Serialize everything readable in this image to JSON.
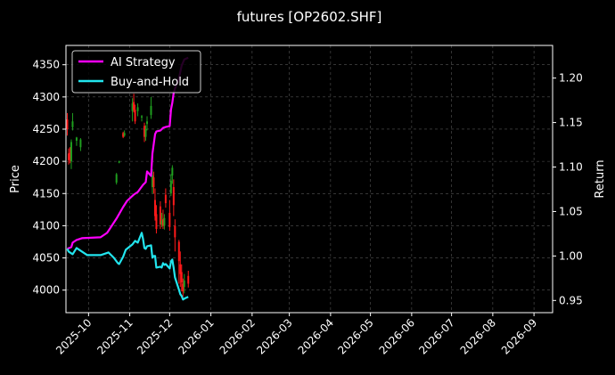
{
  "chart_data": {
    "type": "line",
    "title": "futures [OP2602.SHF]",
    "ylabel_left": "Price",
    "ylabel_right": "Return",
    "x_ticks": [
      "2025-10",
      "2025-11",
      "2025-12",
      "2026-01",
      "2026-02",
      "2026-03",
      "2026-04",
      "2026-05",
      "2026-06",
      "2026-07",
      "2026-08",
      "2026-09"
    ],
    "x_range": [
      "2025-09-14",
      "2026-09-15"
    ],
    "ylim_left": [
      3965,
      4380
    ],
    "yticks_left": [
      4000,
      4050,
      4100,
      4150,
      4200,
      4250,
      4300,
      4350
    ],
    "ylim_right": [
      0.9363,
      1.2367
    ],
    "yticks_right": [
      0.95,
      1.0,
      1.05,
      1.1,
      1.15,
      1.2
    ],
    "grid": true,
    "legend_position": "top-left",
    "colors": {
      "background": "#000000",
      "ai_strategy": "#ff00ff",
      "buy_and_hold": "#22e5ee",
      "candle_up": "#1f9e1f",
      "candle_down": "#ff1a1a",
      "grid": "#555555",
      "axis": "#ffffff"
    },
    "series": [
      {
        "name": "AI Strategy",
        "color": "#ff00ff",
        "points": [
          [
            "2025-09-15",
            1.008
          ],
          [
            "2025-09-18",
            1.01
          ],
          [
            "2025-09-19",
            1.015
          ],
          [
            "2025-09-22",
            1.018
          ],
          [
            "2025-09-26",
            1.02
          ],
          [
            "2025-10-10",
            1.021
          ],
          [
            "2025-10-15",
            1.026
          ],
          [
            "2025-10-22",
            1.042
          ],
          [
            "2025-10-27",
            1.055
          ],
          [
            "2025-10-30",
            1.062
          ],
          [
            "2025-11-04",
            1.069
          ],
          [
            "2025-11-07",
            1.072
          ],
          [
            "2025-11-11",
            1.08
          ],
          [
            "2025-11-13",
            1.083
          ],
          [
            "2025-11-14",
            1.095
          ],
          [
            "2025-11-17",
            1.09
          ],
          [
            "2025-11-18",
            1.115
          ],
          [
            "2025-11-20",
            1.137
          ],
          [
            "2025-11-21",
            1.14
          ],
          [
            "2025-11-24",
            1.141
          ],
          [
            "2025-11-26",
            1.144
          ],
          [
            "2025-11-28",
            1.145
          ],
          [
            "2025-12-01",
            1.146
          ],
          [
            "2025-12-02",
            1.165
          ],
          [
            "2025-12-03",
            1.172
          ],
          [
            "2025-12-04",
            1.183
          ],
          [
            "2025-12-05",
            1.188
          ],
          [
            "2025-12-08",
            1.2
          ],
          [
            "2025-12-10",
            1.214
          ],
          [
            "2025-12-12",
            1.221
          ],
          [
            "2025-12-15",
            1.223
          ]
        ]
      },
      {
        "name": "Buy-and-Hold",
        "color": "#22e5ee",
        "points": [
          [
            "2025-09-15",
            1.008
          ],
          [
            "2025-09-16",
            1.005
          ],
          [
            "2025-09-18",
            1.003
          ],
          [
            "2025-09-19",
            1.002
          ],
          [
            "2025-09-22",
            1.009
          ],
          [
            "2025-09-25",
            1.006
          ],
          [
            "2025-09-30",
            1.001
          ],
          [
            "2025-10-10",
            1.001
          ],
          [
            "2025-10-14",
            1.003
          ],
          [
            "2025-10-16",
            1.004
          ],
          [
            "2025-10-20",
            0.998
          ],
          [
            "2025-10-23",
            0.992
          ],
          [
            "2025-10-24",
            0.991
          ],
          [
            "2025-10-27",
            0.999
          ],
          [
            "2025-10-29",
            1.007
          ],
          [
            "2025-11-03",
            1.013
          ],
          [
            "2025-11-05",
            1.017
          ],
          [
            "2025-11-07",
            1.015
          ],
          [
            "2025-11-10",
            1.026
          ],
          [
            "2025-11-11",
            1.019
          ],
          [
            "2025-11-12",
            1.009
          ],
          [
            "2025-11-13",
            1.008
          ],
          [
            "2025-11-14",
            1.011
          ],
          [
            "2025-11-17",
            1.012
          ],
          [
            "2025-11-18",
            0.998
          ],
          [
            "2025-11-19",
            1.0
          ],
          [
            "2025-11-20",
            1.0
          ],
          [
            "2025-11-21",
            0.987
          ],
          [
            "2025-11-24",
            0.988
          ],
          [
            "2025-11-25",
            0.987
          ],
          [
            "2025-11-26",
            0.992
          ],
          [
            "2025-11-27",
            0.99
          ],
          [
            "2025-11-28",
            0.991
          ],
          [
            "2025-12-01",
            0.986
          ],
          [
            "2025-12-02",
            0.994
          ],
          [
            "2025-12-03",
            0.996
          ],
          [
            "2025-12-04",
            0.987
          ],
          [
            "2025-12-05",
            0.976
          ],
          [
            "2025-12-08",
            0.962
          ],
          [
            "2025-12-09",
            0.957
          ],
          [
            "2025-12-10",
            0.955
          ],
          [
            "2025-12-11",
            0.951
          ],
          [
            "2025-12-12",
            0.952
          ],
          [
            "2025-12-15",
            0.954
          ]
        ]
      }
    ],
    "candles": [
      [
        "2025-09-15",
        4265,
        4250,
        4275,
        4240
      ],
      [
        "2025-09-16",
        4212,
        4202,
        4220,
        4195
      ],
      [
        "2025-09-17",
        4213,
        4204,
        4222,
        4197
      ],
      [
        "2025-09-18",
        4200,
        4230,
        4234,
        4188
      ],
      [
        "2025-09-19",
        4253,
        4262,
        4275,
        4248
      ],
      [
        "2025-09-22",
        4232,
        4237,
        4238,
        4224
      ],
      [
        "2025-09-25",
        4222,
        4234,
        4236,
        4216
      ],
      [
        "2025-10-22",
        4167,
        4180,
        4182,
        4164
      ],
      [
        "2025-10-24",
        4198,
        4200,
        4201,
        4197
      ],
      [
        "2025-10-27",
        4244,
        4238,
        4246,
        4236
      ],
      [
        "2025-10-28",
        4240,
        4244,
        4248,
        4238
      ],
      [
        "2025-11-03",
        4278,
        4290,
        4298,
        4262
      ],
      [
        "2025-11-04",
        4292,
        4280,
        4305,
        4276
      ],
      [
        "2025-11-05",
        4280,
        4262,
        4288,
        4258
      ],
      [
        "2025-11-07",
        4278,
        4284,
        4290,
        4270
      ],
      [
        "2025-11-10",
        4268,
        4270,
        4272,
        4262
      ],
      [
        "2025-11-12",
        4255,
        4238,
        4260,
        4230
      ],
      [
        "2025-11-13",
        4238,
        4250,
        4256,
        4232
      ],
      [
        "2025-11-14",
        4258,
        4262,
        4270,
        4248
      ],
      [
        "2025-11-17",
        4272,
        4286,
        4300,
        4266
      ],
      [
        "2025-11-18",
        4160,
        4178,
        4188,
        4150
      ],
      [
        "2025-11-19",
        4175,
        4160,
        4184,
        4150
      ],
      [
        "2025-11-20",
        4140,
        4115,
        4158,
        4108
      ],
      [
        "2025-11-21",
        4118,
        4095,
        4132,
        4088
      ],
      [
        "2025-11-24",
        4130,
        4102,
        4138,
        4095
      ],
      [
        "2025-11-25",
        4102,
        4108,
        4120,
        4098
      ],
      [
        "2025-11-26",
        4110,
        4100,
        4125,
        4095
      ],
      [
        "2025-11-27",
        4100,
        4112,
        4118,
        4094
      ],
      [
        "2025-11-28",
        4148,
        4135,
        4158,
        4128
      ],
      [
        "2025-12-01",
        4120,
        4098,
        4140,
        4092
      ],
      [
        "2025-12-02",
        4150,
        4170,
        4180,
        4146
      ],
      [
        "2025-12-03",
        4178,
        4190,
        4194,
        4165
      ],
      [
        "2025-12-04",
        4160,
        4132,
        4172,
        4115
      ],
      [
        "2025-12-05",
        4100,
        4082,
        4110,
        4060
      ],
      [
        "2025-12-08",
        4075,
        4045,
        4078,
        4010
      ],
      [
        "2025-12-09",
        4040,
        4025,
        4060,
        4005
      ],
      [
        "2025-12-10",
        4028,
        4012,
        4040,
        3998
      ],
      [
        "2025-12-11",
        4010,
        3998,
        4018,
        3990
      ],
      [
        "2025-12-12",
        4005,
        4015,
        4025,
        3995
      ],
      [
        "2025-12-15",
        4022,
        4010,
        4030,
        4004
      ]
    ]
  }
}
